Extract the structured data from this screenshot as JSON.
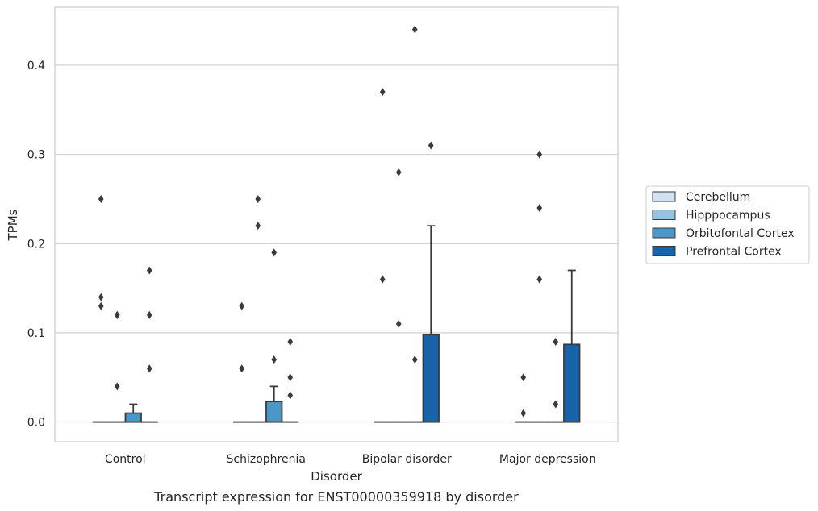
{
  "caption": "Transcript expression for ENST00000359918 by disorder",
  "chart_data": {
    "type": "box",
    "xlabel": "Disorder",
    "ylabel": "TPMs",
    "categories": [
      "Control",
      "Schizophrenia",
      "Bipolar disorder",
      "Major depression"
    ],
    "ylim": [
      -0.022,
      0.465
    ],
    "yticks": [
      0.0,
      0.1,
      0.2,
      0.3,
      0.4
    ],
    "ytick_labels": [
      "0.0",
      "0.1",
      "0.2",
      "0.3",
      "0.4"
    ],
    "grid": "horizontal",
    "legend_position": "right",
    "series": [
      {
        "name": "Cerebellum",
        "color": "#d0e1f2",
        "boxes": [
          {
            "q1": 0,
            "median": 0,
            "q3": 0,
            "whislo": 0,
            "whishi": 0,
            "fliers": [
              0.25,
              0.14,
              0.13
            ]
          },
          {
            "q1": 0,
            "median": 0,
            "q3": 0,
            "whislo": 0,
            "whishi": 0,
            "fliers": [
              0.13,
              0.06
            ]
          },
          {
            "q1": 0,
            "median": 0,
            "q3": 0,
            "whislo": 0,
            "whishi": 0,
            "fliers": [
              0.37,
              0.16
            ]
          },
          {
            "q1": 0,
            "median": 0,
            "q3": 0,
            "whislo": 0,
            "whishi": 0,
            "fliers": [
              0.05,
              0.01
            ]
          }
        ]
      },
      {
        "name": "Hipppocampus",
        "color": "#94c4df",
        "boxes": [
          {
            "q1": 0,
            "median": 0,
            "q3": 0,
            "whislo": 0,
            "whishi": 0,
            "fliers": [
              0.12,
              0.12,
              0.04
            ]
          },
          {
            "q1": 0,
            "median": 0,
            "q3": 0,
            "whislo": 0,
            "whishi": 0,
            "fliers": [
              0.25,
              0.22
            ]
          },
          {
            "q1": 0,
            "median": 0,
            "q3": 0,
            "whislo": 0,
            "whishi": 0,
            "fliers": [
              0.28,
              0.11
            ]
          },
          {
            "q1": 0,
            "median": 0,
            "q3": 0,
            "whislo": 0,
            "whishi": 0,
            "fliers": [
              0.3,
              0.24,
              0.16
            ]
          }
        ]
      },
      {
        "name": "Orbitofontal Cortex",
        "color": "#4a98c9",
        "boxes": [
          {
            "q1": 0,
            "median": 0,
            "q3": 0.01,
            "whislo": 0,
            "whishi": 0.02,
            "fliers": []
          },
          {
            "q1": 0,
            "median": 0,
            "q3": 0.023,
            "whislo": 0,
            "whishi": 0.04,
            "fliers": [
              0.19,
              0.07
            ]
          },
          {
            "q1": 0,
            "median": 0,
            "q3": 0,
            "whislo": 0,
            "whishi": 0,
            "fliers": [
              0.44,
              0.07
            ]
          },
          {
            "q1": 0,
            "median": 0,
            "q3": 0,
            "whislo": 0,
            "whishi": 0,
            "fliers": [
              0.09,
              0.02
            ]
          }
        ]
      },
      {
        "name": "Prefrontal Cortex",
        "color": "#1764ab",
        "boxes": [
          {
            "q1": 0,
            "median": 0,
            "q3": 0,
            "whislo": 0,
            "whishi": 0,
            "fliers": [
              0.17,
              0.12,
              0.06
            ]
          },
          {
            "q1": 0,
            "median": 0,
            "q3": 0,
            "whislo": 0,
            "whishi": 0,
            "fliers": [
              0.09,
              0.05,
              0.03
            ]
          },
          {
            "q1": 0,
            "median": 0,
            "q3": 0.098,
            "whislo": 0,
            "whishi": 0.22,
            "fliers": [
              0.31
            ]
          },
          {
            "q1": 0,
            "median": 0,
            "q3": 0.087,
            "whislo": 0,
            "whishi": 0.17,
            "fliers": []
          }
        ]
      }
    ]
  }
}
